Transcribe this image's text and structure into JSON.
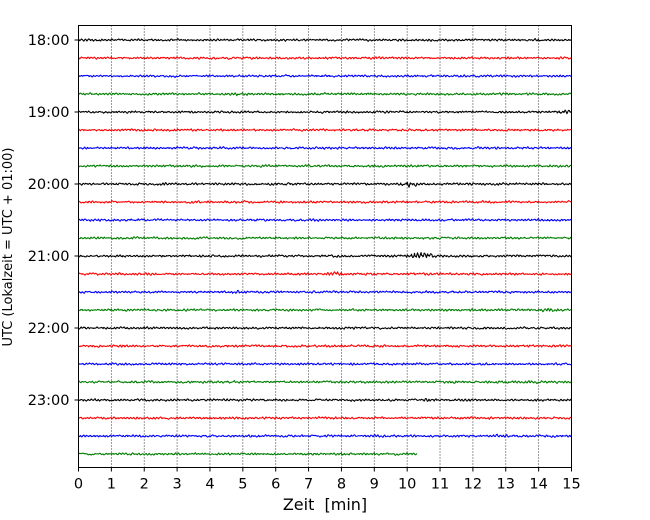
{
  "chart_data": {
    "type": "line",
    "title": "",
    "xlabel": "Zeit  [min]",
    "ylabel": "UTC (Lokalzeit = UTC + 01:00)",
    "xlim": [
      0,
      15
    ],
    "x_ticks": [
      "0",
      "1",
      "2",
      "3",
      "4",
      "5",
      "6",
      "7",
      "8",
      "9",
      "10",
      "11",
      "12",
      "13",
      "14",
      "15"
    ],
    "y_tick_labels": [
      "18:00",
      "19:00",
      "20:00",
      "21:00",
      "22:00",
      "23:00"
    ],
    "grid": "vertical dotted",
    "trace_interval_minutes": 15,
    "trace_colors": [
      "#000000",
      "#ff0000",
      "#0000ff",
      "#007f00"
    ],
    "traces": [
      {
        "start": "18:00",
        "color": "#000000",
        "end_min": 15,
        "events": [
          {
            "t": 14.1,
            "amp": 1.4
          }
        ]
      },
      {
        "start": "18:15",
        "color": "#ff0000",
        "end_min": 15,
        "events": []
      },
      {
        "start": "18:30",
        "color": "#0000ff",
        "end_min": 15,
        "events": []
      },
      {
        "start": "18:45",
        "color": "#007f00",
        "end_min": 15,
        "events": [
          {
            "t": 4.8,
            "amp": 1.3
          },
          {
            "t": 13.4,
            "amp": 1.3
          }
        ]
      },
      {
        "start": "19:00",
        "color": "#000000",
        "end_min": 15,
        "events": [
          {
            "t": 14.8,
            "amp": 1.5
          }
        ]
      },
      {
        "start": "19:15",
        "color": "#ff0000",
        "end_min": 15,
        "events": []
      },
      {
        "start": "19:30",
        "color": "#0000ff",
        "end_min": 15,
        "events": []
      },
      {
        "start": "19:45",
        "color": "#007f00",
        "end_min": 15,
        "events": [
          {
            "t": 3.8,
            "amp": 1.2
          },
          {
            "t": 9.2,
            "amp": 1.2
          }
        ]
      },
      {
        "start": "20:00",
        "color": "#000000",
        "end_min": 15,
        "events": [
          {
            "t": 10.1,
            "amp": 2.2
          },
          {
            "t": 2.6,
            "amp": 1.2
          }
        ]
      },
      {
        "start": "20:15",
        "color": "#ff0000",
        "end_min": 15,
        "events": []
      },
      {
        "start": "20:30",
        "color": "#0000ff",
        "end_min": 15,
        "events": []
      },
      {
        "start": "20:45",
        "color": "#007f00",
        "end_min": 15,
        "events": []
      },
      {
        "start": "21:00",
        "color": "#000000",
        "end_min": 15,
        "events": [
          {
            "t": 10.4,
            "amp": 3.2
          },
          {
            "t": 11.8,
            "amp": 1.3
          }
        ]
      },
      {
        "start": "21:15",
        "color": "#ff0000",
        "end_min": 15,
        "events": [
          {
            "t": 7.8,
            "amp": 1.6
          }
        ]
      },
      {
        "start": "21:30",
        "color": "#0000ff",
        "end_min": 15,
        "events": [
          {
            "t": 4.8,
            "amp": 1.3
          }
        ]
      },
      {
        "start": "21:45",
        "color": "#007f00",
        "end_min": 15,
        "events": [
          {
            "t": 14.3,
            "amp": 1.5
          }
        ]
      },
      {
        "start": "22:00",
        "color": "#000000",
        "end_min": 15,
        "events": []
      },
      {
        "start": "22:15",
        "color": "#ff0000",
        "end_min": 15,
        "events": []
      },
      {
        "start": "22:30",
        "color": "#0000ff",
        "end_min": 15,
        "events": []
      },
      {
        "start": "22:45",
        "color": "#007f00",
        "end_min": 15,
        "events": [
          {
            "t": 11.4,
            "amp": 1.2
          },
          {
            "t": 13.9,
            "amp": 1.2
          }
        ]
      },
      {
        "start": "23:00",
        "color": "#000000",
        "end_min": 15,
        "events": [
          {
            "t": 10.7,
            "amp": 1.3
          }
        ]
      },
      {
        "start": "23:15",
        "color": "#ff0000",
        "end_min": 15,
        "events": []
      },
      {
        "start": "23:30",
        "color": "#0000ff",
        "end_min": 15,
        "events": [
          {
            "t": 12.9,
            "amp": 1.4
          }
        ]
      },
      {
        "start": "23:45",
        "color": "#007f00",
        "end_min": 10.3,
        "events": []
      }
    ]
  }
}
